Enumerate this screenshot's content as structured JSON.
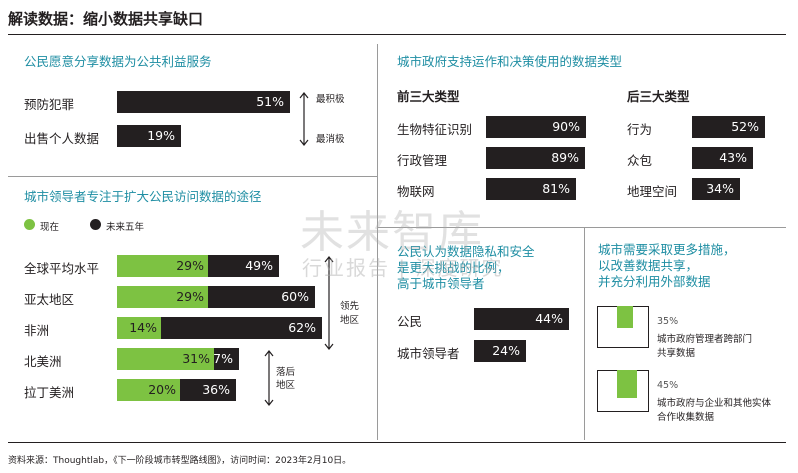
{
  "title": "解读数据：缩小数据共享缺口",
  "left_top": {
    "heading": "公民愿意分享数据为公共利益服务",
    "rows": [
      {
        "label": "预防犯罪",
        "value": 51,
        "display": "51%"
      },
      {
        "label": "出售个人数据",
        "value": 19,
        "display": "19%"
      }
    ],
    "scale_top": "最积极",
    "scale_bottom": "最消极"
  },
  "left_bottom": {
    "heading": "城市领导者专注于扩大公民访问数据的途径",
    "legend": [
      {
        "label": "现在",
        "color": "#7dc242"
      },
      {
        "label": "未来五年",
        "color": "#231f20"
      }
    ],
    "rows": [
      {
        "label": "全球平均水平",
        "now": 29,
        "now_display": "29%",
        "future": 49,
        "future_display": "49%"
      },
      {
        "label": "亚太地区",
        "now": 29,
        "now_display": "29%",
        "future": 60,
        "future_display": "60%"
      },
      {
        "label": "非洲",
        "now": 14,
        "now_display": "14%",
        "future": 62,
        "future_display": "62%"
      },
      {
        "label": "北美洲",
        "now": 31,
        "now_display": "31%",
        "future": 37,
        "future_display": "37%"
      },
      {
        "label": "拉丁美洲",
        "now": 20,
        "now_display": "20%",
        "future": 36,
        "future_display": "36%"
      }
    ],
    "leading_label_1": "领先",
    "leading_label_2": "地区",
    "lagging_label_1": "落后",
    "lagging_label_2": "地区"
  },
  "right_top": {
    "heading": "城市政府支持运作和决策使用的数据类型",
    "top3_title": "前三大类型",
    "top3": [
      {
        "label": "生物特征识别",
        "value": 90,
        "display": "90%"
      },
      {
        "label": "行政管理",
        "value": 89,
        "display": "89%"
      },
      {
        "label": "物联网",
        "value": 81,
        "display": "81%"
      }
    ],
    "bottom3_title": "后三大类型",
    "bottom3": [
      {
        "label": "行为",
        "value": 52,
        "display": "52%"
      },
      {
        "label": "众包",
        "value": 43,
        "display": "43%"
      },
      {
        "label": "地理空间",
        "value": 34,
        "display": "34%"
      }
    ]
  },
  "right_mid": {
    "heading_1": "公民认为数据隐私和安全",
    "heading_2": "是更大挑战的比例，",
    "heading_3": "高于城市领导者",
    "rows": [
      {
        "label": "公民",
        "value": 44,
        "display": "44%"
      },
      {
        "label": "城市领导者",
        "value": 24,
        "display": "24%"
      }
    ]
  },
  "right_right": {
    "heading_1": "城市需要采取更多措施，",
    "heading_2": "以改善数据共享，",
    "heading_3": "并充分利用外部数据",
    "items": [
      {
        "percent": "35%",
        "value": 35,
        "line1": "城市政府管理者跨部门",
        "line2": "共享数据"
      },
      {
        "percent": "45%",
        "value": 45,
        "line1": "城市政府与企业和其他实体",
        "line2": "合作收集数据"
      }
    ]
  },
  "watermark": {
    "line1": "未来智库",
    "line2": "行业报告 | 深度研究"
  },
  "source": "资料来源：Thoughtlab，《下一阶段城市转型路线图》，访问时间：2023年2月10日。",
  "chart_data": [
    {
      "type": "bar",
      "title": "公民愿意分享数据为公共利益服务",
      "categories": [
        "预防犯罪",
        "出售个人数据"
      ],
      "values": [
        51,
        19
      ],
      "ylim": [
        0,
        100
      ]
    },
    {
      "type": "bar",
      "title": "城市领导者专注于扩大公民访问数据的途径",
      "categories": [
        "全球平均水平",
        "亚太地区",
        "非洲",
        "北美洲",
        "拉丁美洲"
      ],
      "series": [
        {
          "name": "现在",
          "values": [
            29,
            29,
            14,
            31,
            20
          ]
        },
        {
          "name": "未来五年",
          "values": [
            49,
            60,
            62,
            37,
            36
          ]
        }
      ],
      "ylim": [
        0,
        100
      ]
    },
    {
      "type": "bar",
      "title": "城市政府支持运作和决策使用的数据类型",
      "categories": [
        "生物特征识别",
        "行政管理",
        "物联网",
        "行为",
        "众包",
        "地理空间"
      ],
      "values": [
        90,
        89,
        81,
        52,
        43,
        34
      ],
      "ylim": [
        0,
        100
      ]
    },
    {
      "type": "bar",
      "title": "公民认为数据隐私和安全是更大挑战的比例，高于城市领导者",
      "categories": [
        "公民",
        "城市领导者"
      ],
      "values": [
        44,
        24
      ],
      "ylim": [
        0,
        100
      ]
    },
    {
      "type": "bar",
      "title": "城市需要采取更多措施，以改善数据共享，并充分利用外部数据",
      "categories": [
        "城市政府管理者跨部门共享数据",
        "城市政府与企业和其他实体合作收集数据"
      ],
      "values": [
        35,
        45
      ],
      "ylim": [
        0,
        100
      ]
    }
  ]
}
